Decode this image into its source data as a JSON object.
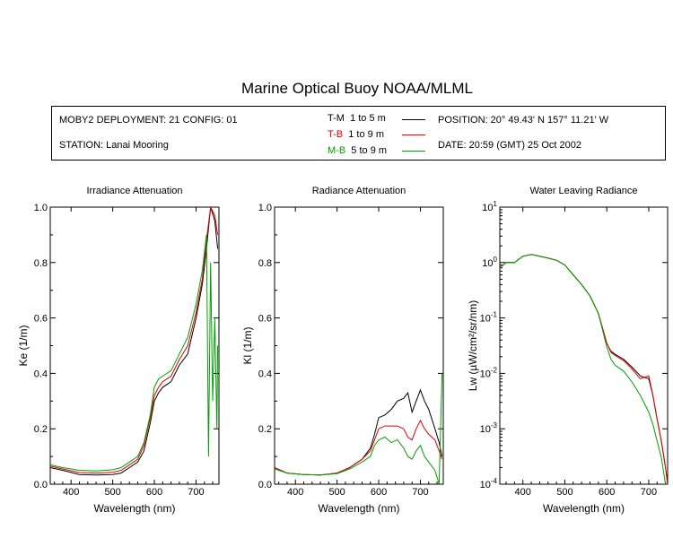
{
  "title": "Marine Optical Buoy NOAA/MLML",
  "info": {
    "deployment": "MOBY2 DEPLOYMENT: 21 CONFIG: 01",
    "station": "STATION: Lanai Mooring",
    "position": "POSITION: 20° 49.43' N   157° 11.21' W",
    "date": "DATE: 20:59 (GMT) 25 Oct 2002",
    "legend": [
      {
        "code": "T-M",
        "range": "1 to 5  m",
        "color": "#000000"
      },
      {
        "code": "T-B",
        "range": "1 to 9  m",
        "color": "#e00000"
      },
      {
        "code": "M-B",
        "range": "5 to 9  m",
        "color": "#00a000"
      }
    ]
  },
  "chart_data": [
    {
      "type": "line",
      "title": "Irradiance Attenuation",
      "xlabel": "Wavelength (nm)",
      "ylabel": "Ke  (1/m)",
      "xlim": [
        350,
        755
      ],
      "ylim": [
        0,
        1
      ],
      "xticks": [
        400,
        500,
        600,
        700
      ],
      "yticks": [
        0.0,
        0.2,
        0.4,
        0.6,
        0.8,
        1.0
      ],
      "ytick_labels": [
        "0.0",
        "0.2",
        "0.4",
        "0.6",
        "0.8",
        "1.0"
      ],
      "series": [
        {
          "name": "T-M",
          "color": "#000000",
          "x": [
            350,
            380,
            420,
            460,
            500,
            520,
            540,
            560,
            575,
            590,
            600,
            610,
            620,
            640,
            660,
            680,
            700,
            715,
            725,
            735,
            745,
            752
          ],
          "y": [
            0.06,
            0.05,
            0.035,
            0.033,
            0.035,
            0.04,
            0.06,
            0.08,
            0.12,
            0.22,
            0.3,
            0.33,
            0.35,
            0.37,
            0.43,
            0.47,
            0.6,
            0.72,
            0.85,
            1.0,
            0.95,
            0.85
          ]
        },
        {
          "name": "T-B",
          "color": "#e00000",
          "x": [
            350,
            380,
            420,
            460,
            500,
            520,
            540,
            560,
            575,
            590,
            600,
            610,
            620,
            640,
            660,
            680,
            700,
            715,
            725,
            735,
            745,
            752
          ],
          "y": [
            0.065,
            0.055,
            0.042,
            0.04,
            0.043,
            0.05,
            0.07,
            0.09,
            0.14,
            0.24,
            0.32,
            0.35,
            0.37,
            0.39,
            0.45,
            0.5,
            0.62,
            0.74,
            0.88,
            1.0,
            0.97,
            0.9
          ]
        },
        {
          "name": "M-B",
          "color": "#00a000",
          "x": [
            350,
            380,
            420,
            460,
            500,
            520,
            540,
            560,
            575,
            590,
            600,
            610,
            620,
            640,
            660,
            680,
            700,
            715,
            725,
            730,
            735,
            740,
            745,
            750,
            752
          ],
          "y": [
            0.07,
            0.06,
            0.05,
            0.048,
            0.052,
            0.06,
            0.08,
            0.1,
            0.15,
            0.25,
            0.35,
            0.38,
            0.39,
            0.41,
            0.47,
            0.53,
            0.65,
            0.77,
            0.9,
            0.1,
            0.8,
            0.3,
            0.6,
            0.2,
            0.5
          ]
        }
      ]
    },
    {
      "type": "line",
      "title": "Radiance Attenuation",
      "xlabel": "Wavelength (nm)",
      "ylabel": "Kl  (1/m)",
      "xlim": [
        350,
        755
      ],
      "ylim": [
        0,
        1
      ],
      "xticks": [
        400,
        500,
        600,
        700
      ],
      "yticks": [
        0.0,
        0.2,
        0.4,
        0.6,
        0.8,
        1.0
      ],
      "ytick_labels": [
        "0.0",
        "0.2",
        "0.4",
        "0.6",
        "0.8",
        "1.0"
      ],
      "series": [
        {
          "name": "T-M",
          "color": "#000000",
          "x": [
            350,
            380,
            420,
            460,
            500,
            530,
            560,
            580,
            590,
            600,
            615,
            630,
            645,
            660,
            670,
            680,
            690,
            700,
            710,
            720,
            735,
            745,
            752
          ],
          "y": [
            0.06,
            0.04,
            0.035,
            0.033,
            0.04,
            0.06,
            0.09,
            0.13,
            0.18,
            0.24,
            0.25,
            0.27,
            0.3,
            0.31,
            0.33,
            0.26,
            0.3,
            0.34,
            0.3,
            0.27,
            0.2,
            0.15,
            0.1
          ]
        },
        {
          "name": "T-B",
          "color": "#e00000",
          "x": [
            350,
            380,
            420,
            460,
            500,
            530,
            560,
            580,
            590,
            600,
            615,
            630,
            645,
            660,
            670,
            680,
            690,
            700,
            710,
            720,
            735,
            745,
            752
          ],
          "y": [
            0.06,
            0.04,
            0.035,
            0.033,
            0.04,
            0.06,
            0.09,
            0.12,
            0.16,
            0.2,
            0.21,
            0.21,
            0.21,
            0.2,
            0.17,
            0.16,
            0.2,
            0.23,
            0.2,
            0.18,
            0.16,
            0.12,
            0.09
          ]
        },
        {
          "name": "M-B",
          "color": "#00a000",
          "x": [
            350,
            380,
            420,
            460,
            500,
            530,
            560,
            580,
            590,
            600,
            615,
            630,
            645,
            660,
            670,
            680,
            690,
            700,
            710,
            720,
            735,
            745,
            752
          ],
          "y": [
            0.055,
            0.04,
            0.035,
            0.033,
            0.038,
            0.055,
            0.08,
            0.1,
            0.14,
            0.16,
            0.17,
            0.15,
            0.16,
            0.13,
            0.1,
            0.09,
            0.12,
            0.14,
            0.1,
            0.08,
            0.05,
            0.0,
            0.4
          ]
        }
      ]
    },
    {
      "type": "line",
      "title": "Water Leaving Radiance",
      "xlabel": "Wavelength (nm)",
      "ylabel": "Lw  (µW/cm²/sr/nm)",
      "xlim": [
        345,
        745
      ],
      "ylim": [
        0.0001,
        10
      ],
      "yscale": "log",
      "xticks": [
        400,
        500,
        600,
        700
      ],
      "yticks": [
        0.0001,
        0.001,
        0.01,
        0.1,
        1,
        10
      ],
      "ytick_exponents": [
        "-4",
        "-3",
        "-2",
        "-1",
        "0",
        "1"
      ],
      "series": [
        {
          "name": "T-M",
          "color": "#000000",
          "x": [
            345,
            360,
            380,
            400,
            420,
            440,
            460,
            480,
            500,
            520,
            540,
            560,
            580,
            600,
            610,
            620,
            640,
            660,
            680,
            700,
            710,
            720,
            730,
            740,
            745
          ],
          "y": [
            0.8,
            1.0,
            1.0,
            1.3,
            1.4,
            1.3,
            1.2,
            1.1,
            0.9,
            0.6,
            0.4,
            0.25,
            0.12,
            0.035,
            0.025,
            0.022,
            0.018,
            0.013,
            0.009,
            0.008,
            0.004,
            0.0015,
            0.0006,
            0.0002,
            0.0001
          ]
        },
        {
          "name": "T-B",
          "color": "#e00000",
          "x": [
            345,
            360,
            380,
            400,
            420,
            440,
            460,
            480,
            500,
            520,
            540,
            560,
            580,
            600,
            610,
            620,
            640,
            660,
            680,
            700,
            710,
            720,
            730,
            740,
            745
          ],
          "y": [
            0.8,
            1.0,
            1.0,
            1.3,
            1.4,
            1.3,
            1.2,
            1.1,
            0.9,
            0.6,
            0.4,
            0.25,
            0.12,
            0.035,
            0.024,
            0.021,
            0.017,
            0.012,
            0.008,
            0.009,
            0.004,
            0.0015,
            0.0006,
            0.0002,
            0.0001
          ]
        },
        {
          "name": "M-B",
          "color": "#00a000",
          "x": [
            345,
            360,
            380,
            400,
            420,
            440,
            460,
            480,
            500,
            520,
            540,
            560,
            580,
            600,
            610,
            620,
            640,
            660,
            680,
            700,
            710,
            720,
            730,
            740
          ],
          "y": [
            0.8,
            1.0,
            1.0,
            1.3,
            1.4,
            1.3,
            1.2,
            1.1,
            0.9,
            0.6,
            0.4,
            0.25,
            0.12,
            0.03,
            0.018,
            0.014,
            0.011,
            0.007,
            0.004,
            0.002,
            0.0012,
            0.0006,
            0.0003,
            0.0001
          ]
        }
      ]
    }
  ]
}
